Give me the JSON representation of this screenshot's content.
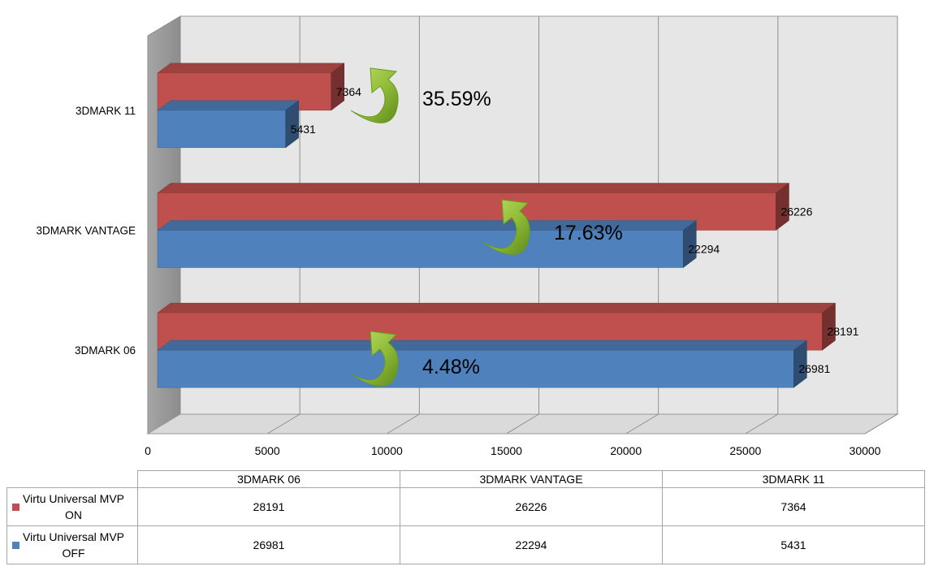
{
  "chart_data": {
    "type": "bar",
    "orientation": "horizontal",
    "style": "3d",
    "categories": [
      "3DMARK 06",
      "3DMARK VANTAGE",
      "3DMARK 11"
    ],
    "series": [
      {
        "name": "Virtu Universal MVP ON",
        "values": [
          28191,
          26226,
          7364
        ],
        "color": "#c0504d"
      },
      {
        "name": "Virtu Universal MVP OFF",
        "values": [
          26981,
          22294,
          5431
        ],
        "color": "#4f81bd"
      }
    ],
    "data_labels": {
      "on": [
        "28191",
        "26226",
        "7364"
      ],
      "off": [
        "26981",
        "22294",
        "5431"
      ]
    },
    "xlim": [
      0,
      30000
    ],
    "x_ticks": [
      "0",
      "5000",
      "10000",
      "15000",
      "20000",
      "25000",
      "30000"
    ],
    "grid": true,
    "annotations": [
      "4.48%",
      "17.63%",
      "35.59%"
    ],
    "annotation_icon": "green-curved-arrow-icon"
  },
  "table": {
    "columns": [
      "3DMARK 06",
      "3DMARK VANTAGE",
      "3DMARK 11"
    ],
    "rows": [
      {
        "legend_line1": "Virtu Universal MVP",
        "legend_line2": "ON",
        "color": "#c0504d",
        "values": [
          "28191",
          "26226",
          "7364"
        ]
      },
      {
        "legend_line1": "Virtu Universal MVP",
        "legend_line2": "OFF",
        "color": "#4f81bd",
        "values": [
          "26981",
          "22294",
          "5431"
        ]
      }
    ]
  }
}
